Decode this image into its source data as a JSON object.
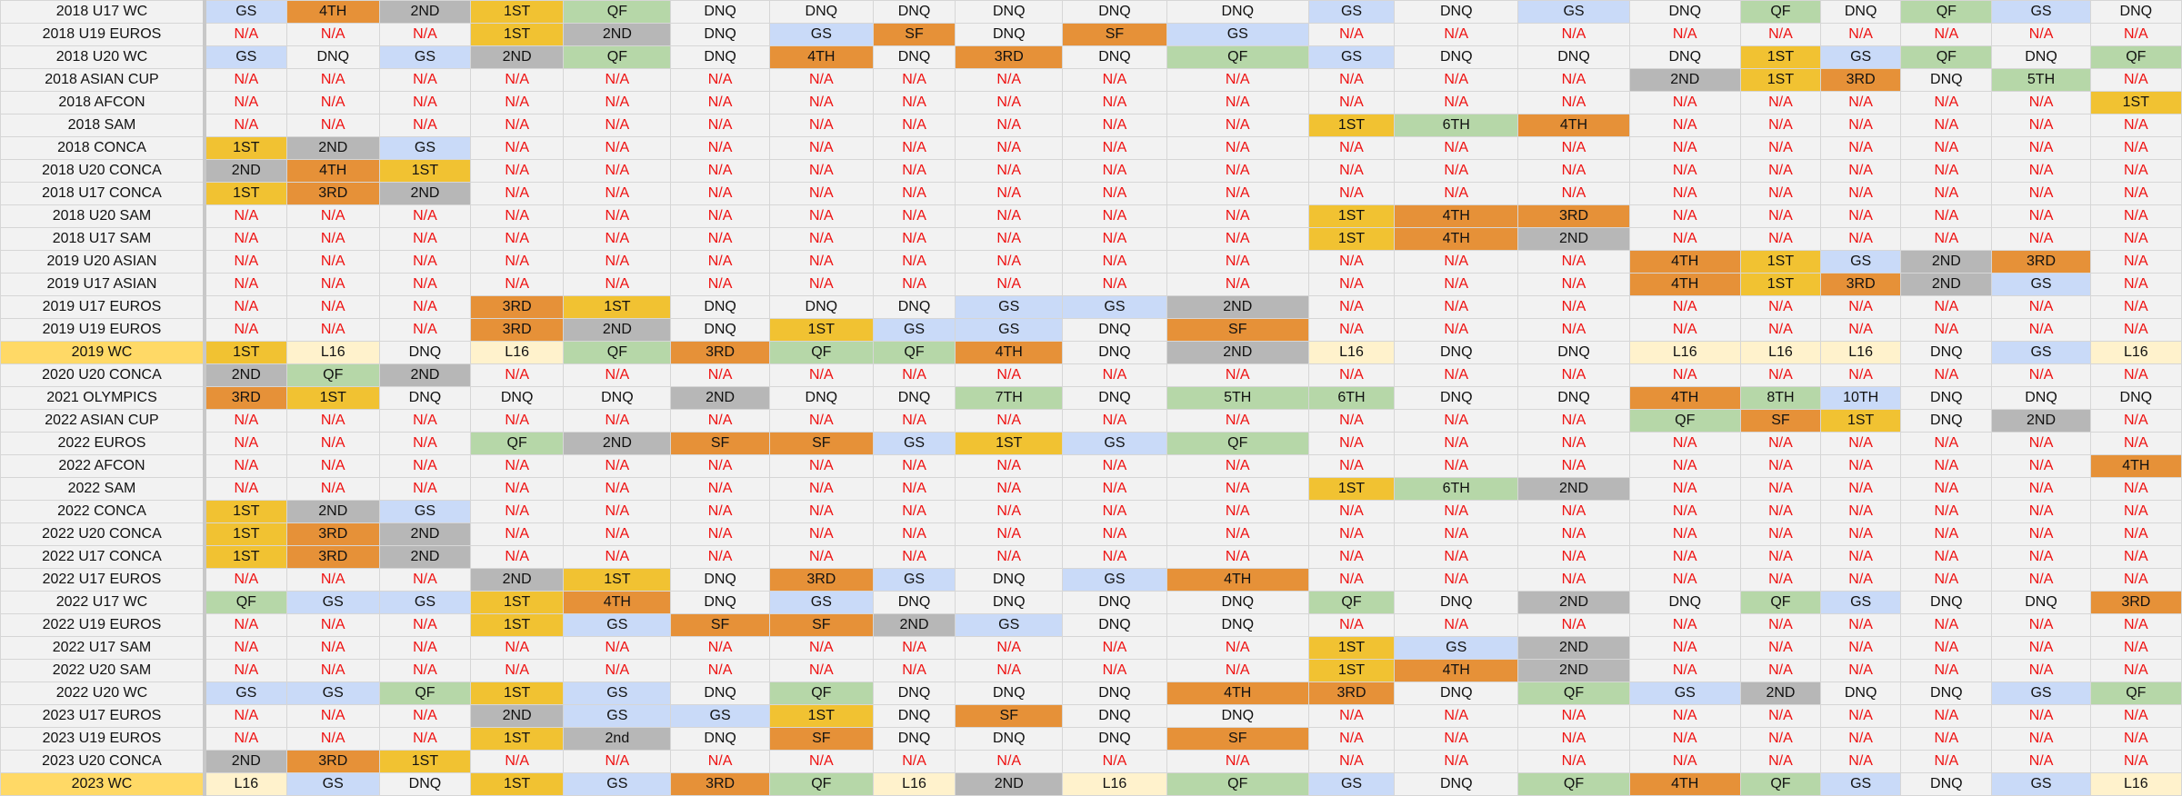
{
  "styles": {
    "GS": "#c9daf8",
    "QF": "#b6d7a8",
    "1ST": "#f1c232",
    "2ND": "#b7b7b7",
    "3RD": "#e69138",
    "4TH": "#e69138",
    "SF": "#e69138",
    "L16": "#fff2cc",
    "5TH": "#b6d7a8",
    "6TH": "#b6d7a8",
    "7TH": "#b6d7a8",
    "8TH": "#b6d7a8",
    "10TH": "#c9daf8",
    "2nd": "#b7b7b7",
    "DNQ": "#f2f2f2",
    "N/A": "#f2f2f2",
    "na_text_color": "#ee1111",
    "highlight_row_color": "#ffd966"
  },
  "rows": [
    {
      "label": "2018 U17 WC",
      "values": [
        "GS",
        "4TH",
        "2ND",
        "1ST",
        "QF",
        "DNQ",
        "DNQ",
        "DNQ",
        "DNQ",
        "DNQ",
        "DNQ",
        "GS",
        "DNQ",
        "GS",
        "DNQ",
        "QF",
        "DNQ",
        "QF",
        "GS",
        "DNQ"
      ]
    },
    {
      "label": "2018 U19 EUROS",
      "values": [
        "N/A",
        "N/A",
        "N/A",
        "1ST",
        "2ND",
        "DNQ",
        "GS",
        "SF",
        "DNQ",
        "SF",
        "GS",
        "N/A",
        "N/A",
        "N/A",
        "N/A",
        "N/A",
        "N/A",
        "N/A",
        "N/A",
        "N/A"
      ]
    },
    {
      "label": "2018 U20 WC",
      "values": [
        "GS",
        "DNQ",
        "GS",
        "2ND",
        "QF",
        "DNQ",
        "4TH",
        "DNQ",
        "3RD",
        "DNQ",
        "QF",
        "GS",
        "DNQ",
        "DNQ",
        "DNQ",
        "1ST",
        "GS",
        "QF",
        "DNQ",
        "QF"
      ]
    },
    {
      "label": "2018 ASIAN CUP",
      "values": [
        "N/A",
        "N/A",
        "N/A",
        "N/A",
        "N/A",
        "N/A",
        "N/A",
        "N/A",
        "N/A",
        "N/A",
        "N/A",
        "N/A",
        "N/A",
        "N/A",
        "2ND",
        "1ST",
        "3RD",
        "DNQ",
        "5TH",
        "N/A"
      ]
    },
    {
      "label": "2018 AFCON",
      "values": [
        "N/A",
        "N/A",
        "N/A",
        "N/A",
        "N/A",
        "N/A",
        "N/A",
        "N/A",
        "N/A",
        "N/A",
        "N/A",
        "N/A",
        "N/A",
        "N/A",
        "N/A",
        "N/A",
        "N/A",
        "N/A",
        "N/A",
        "1ST"
      ]
    },
    {
      "label": "2018 SAM",
      "values": [
        "N/A",
        "N/A",
        "N/A",
        "N/A",
        "N/A",
        "N/A",
        "N/A",
        "N/A",
        "N/A",
        "N/A",
        "N/A",
        "1ST",
        "6TH",
        "4TH",
        "N/A",
        "N/A",
        "N/A",
        "N/A",
        "N/A",
        "N/A"
      ]
    },
    {
      "label": "2018 CONCA",
      "values": [
        "1ST",
        "2ND",
        "GS",
        "N/A",
        "N/A",
        "N/A",
        "N/A",
        "N/A",
        "N/A",
        "N/A",
        "N/A",
        "N/A",
        "N/A",
        "N/A",
        "N/A",
        "N/A",
        "N/A",
        "N/A",
        "N/A",
        "N/A"
      ]
    },
    {
      "label": "2018 U20 CONCA",
      "values": [
        "2ND",
        "4TH",
        "1ST",
        "N/A",
        "N/A",
        "N/A",
        "N/A",
        "N/A",
        "N/A",
        "N/A",
        "N/A",
        "N/A",
        "N/A",
        "N/A",
        "N/A",
        "N/A",
        "N/A",
        "N/A",
        "N/A",
        "N/A"
      ]
    },
    {
      "label": "2018 U17 CONCA",
      "values": [
        "1ST",
        "3RD",
        "2ND",
        "N/A",
        "N/A",
        "N/A",
        "N/A",
        "N/A",
        "N/A",
        "N/A",
        "N/A",
        "N/A",
        "N/A",
        "N/A",
        "N/A",
        "N/A",
        "N/A",
        "N/A",
        "N/A",
        "N/A"
      ]
    },
    {
      "label": "2018 U20 SAM",
      "values": [
        "N/A",
        "N/A",
        "N/A",
        "N/A",
        "N/A",
        "N/A",
        "N/A",
        "N/A",
        "N/A",
        "N/A",
        "N/A",
        "1ST",
        "4TH",
        "3RD",
        "N/A",
        "N/A",
        "N/A",
        "N/A",
        "N/A",
        "N/A"
      ]
    },
    {
      "label": "2018 U17 SAM",
      "values": [
        "N/A",
        "N/A",
        "N/A",
        "N/A",
        "N/A",
        "N/A",
        "N/A",
        "N/A",
        "N/A",
        "N/A",
        "N/A",
        "1ST",
        "4TH",
        "2ND",
        "N/A",
        "N/A",
        "N/A",
        "N/A",
        "N/A",
        "N/A"
      ]
    },
    {
      "label": "2019 U20 ASIAN",
      "values": [
        "N/A",
        "N/A",
        "N/A",
        "N/A",
        "N/A",
        "N/A",
        "N/A",
        "N/A",
        "N/A",
        "N/A",
        "N/A",
        "N/A",
        "N/A",
        "N/A",
        "4TH",
        "1ST",
        "GS",
        "2ND",
        "3RD",
        "N/A"
      ]
    },
    {
      "label": "2019 U17 ASIAN",
      "values": [
        "N/A",
        "N/A",
        "N/A",
        "N/A",
        "N/A",
        "N/A",
        "N/A",
        "N/A",
        "N/A",
        "N/A",
        "N/A",
        "N/A",
        "N/A",
        "N/A",
        "4TH",
        "1ST",
        "3RD",
        "2ND",
        "GS",
        "N/A"
      ]
    },
    {
      "label": "2019 U17 EUROS",
      "values": [
        "N/A",
        "N/A",
        "N/A",
        "3RD",
        "1ST",
        "DNQ",
        "DNQ",
        "DNQ",
        "GS",
        "GS",
        "2ND",
        "N/A",
        "N/A",
        "N/A",
        "N/A",
        "N/A",
        "N/A",
        "N/A",
        "N/A",
        "N/A"
      ]
    },
    {
      "label": "2019 U19 EUROS",
      "values": [
        "N/A",
        "N/A",
        "N/A",
        "3RD",
        "2ND",
        "DNQ",
        "1ST",
        "GS",
        "GS",
        "DNQ",
        "SF",
        "N/A",
        "N/A",
        "N/A",
        "N/A",
        "N/A",
        "N/A",
        "N/A",
        "N/A",
        "N/A"
      ]
    },
    {
      "label": "2019 WC",
      "highlight": true,
      "values": [
        "1ST",
        "L16",
        "DNQ",
        "L16",
        "QF",
        "3RD",
        "QF",
        "QF",
        "4TH",
        "DNQ",
        "2ND",
        "L16",
        "DNQ",
        "DNQ",
        "L16",
        "L16",
        "L16",
        "DNQ",
        "GS",
        "L16"
      ]
    },
    {
      "label": "2020 U20 CONCA",
      "values": [
        "2ND",
        "QF",
        "2ND",
        "N/A",
        "N/A",
        "N/A",
        "N/A",
        "N/A",
        "N/A",
        "N/A",
        "N/A",
        "N/A",
        "N/A",
        "N/A",
        "N/A",
        "N/A",
        "N/A",
        "N/A",
        "N/A",
        "N/A"
      ]
    },
    {
      "label": "2021 OLYMPICS",
      "values": [
        "3RD",
        "1ST",
        "DNQ",
        "DNQ",
        "DNQ",
        "2ND",
        "DNQ",
        "DNQ",
        "7TH",
        "DNQ",
        "5TH",
        "6TH",
        "DNQ",
        "DNQ",
        "4TH",
        "8TH",
        "10TH",
        "DNQ",
        "DNQ",
        "DNQ"
      ]
    },
    {
      "label": "2022 ASIAN CUP",
      "values": [
        "N/A",
        "N/A",
        "N/A",
        "N/A",
        "N/A",
        "N/A",
        "N/A",
        "N/A",
        "N/A",
        "N/A",
        "N/A",
        "N/A",
        "N/A",
        "N/A",
        "QF",
        "SF",
        "1ST",
        "DNQ",
        "2ND",
        "N/A"
      ]
    },
    {
      "label": "2022 EUROS",
      "values": [
        "N/A",
        "N/A",
        "N/A",
        "QF",
        "2ND",
        "SF",
        "SF",
        "GS",
        "1ST",
        "GS",
        "QF",
        "N/A",
        "N/A",
        "N/A",
        "N/A",
        "N/A",
        "N/A",
        "N/A",
        "N/A",
        "N/A"
      ]
    },
    {
      "label": "2022 AFCON",
      "values": [
        "N/A",
        "N/A",
        "N/A",
        "N/A",
        "N/A",
        "N/A",
        "N/A",
        "N/A",
        "N/A",
        "N/A",
        "N/A",
        "N/A",
        "N/A",
        "N/A",
        "N/A",
        "N/A",
        "N/A",
        "N/A",
        "N/A",
        "4TH"
      ]
    },
    {
      "label": "2022 SAM",
      "values": [
        "N/A",
        "N/A",
        "N/A",
        "N/A",
        "N/A",
        "N/A",
        "N/A",
        "N/A",
        "N/A",
        "N/A",
        "N/A",
        "1ST",
        "6TH",
        "2ND",
        "N/A",
        "N/A",
        "N/A",
        "N/A",
        "N/A",
        "N/A"
      ]
    },
    {
      "label": "2022 CONCA",
      "values": [
        "1ST",
        "2ND",
        "GS",
        "N/A",
        "N/A",
        "N/A",
        "N/A",
        "N/A",
        "N/A",
        "N/A",
        "N/A",
        "N/A",
        "N/A",
        "N/A",
        "N/A",
        "N/A",
        "N/A",
        "N/A",
        "N/A",
        "N/A"
      ]
    },
    {
      "label": "2022 U20 CONCA",
      "values": [
        "1ST",
        "3RD",
        "2ND",
        "N/A",
        "N/A",
        "N/A",
        "N/A",
        "N/A",
        "N/A",
        "N/A",
        "N/A",
        "N/A",
        "N/A",
        "N/A",
        "N/A",
        "N/A",
        "N/A",
        "N/A",
        "N/A",
        "N/A"
      ]
    },
    {
      "label": "2022 U17 CONCA",
      "values": [
        "1ST",
        "3RD",
        "2ND",
        "N/A",
        "N/A",
        "N/A",
        "N/A",
        "N/A",
        "N/A",
        "N/A",
        "N/A",
        "N/A",
        "N/A",
        "N/A",
        "N/A",
        "N/A",
        "N/A",
        "N/A",
        "N/A",
        "N/A"
      ]
    },
    {
      "label": "2022 U17 EUROS",
      "values": [
        "N/A",
        "N/A",
        "N/A",
        "2ND",
        "1ST",
        "DNQ",
        "3RD",
        "GS",
        "DNQ",
        "GS",
        "4TH",
        "N/A",
        "N/A",
        "N/A",
        "N/A",
        "N/A",
        "N/A",
        "N/A",
        "N/A",
        "N/A"
      ]
    },
    {
      "label": "2022 U17 WC",
      "values": [
        "QF",
        "GS",
        "GS",
        "1ST",
        "4TH",
        "DNQ",
        "GS",
        "DNQ",
        "DNQ",
        "DNQ",
        "DNQ",
        "QF",
        "DNQ",
        "2ND",
        "DNQ",
        "QF",
        "GS",
        "DNQ",
        "DNQ",
        "3RD"
      ]
    },
    {
      "label": "2022 U19 EUROS",
      "values": [
        "N/A",
        "N/A",
        "N/A",
        "1ST",
        "GS",
        "SF",
        "SF",
        "2ND",
        "GS",
        "DNQ",
        "DNQ",
        "N/A",
        "N/A",
        "N/A",
        "N/A",
        "N/A",
        "N/A",
        "N/A",
        "N/A",
        "N/A"
      ]
    },
    {
      "label": "2022 U17 SAM",
      "values": [
        "N/A",
        "N/A",
        "N/A",
        "N/A",
        "N/A",
        "N/A",
        "N/A",
        "N/A",
        "N/A",
        "N/A",
        "N/A",
        "1ST",
        "GS",
        "2ND",
        "N/A",
        "N/A",
        "N/A",
        "N/A",
        "N/A",
        "N/A"
      ]
    },
    {
      "label": "2022 U20 SAM",
      "values": [
        "N/A",
        "N/A",
        "N/A",
        "N/A",
        "N/A",
        "N/A",
        "N/A",
        "N/A",
        "N/A",
        "N/A",
        "N/A",
        "1ST",
        "4TH",
        "2ND",
        "N/A",
        "N/A",
        "N/A",
        "N/A",
        "N/A",
        "N/A"
      ]
    },
    {
      "label": "2022 U20 WC",
      "values": [
        "GS",
        "GS",
        "QF",
        "1ST",
        "GS",
        "DNQ",
        "QF",
        "DNQ",
        "DNQ",
        "DNQ",
        "4TH",
        "3RD",
        "DNQ",
        "QF",
        "GS",
        "2ND",
        "DNQ",
        "DNQ",
        "GS",
        "QF"
      ]
    },
    {
      "label": "2023 U17 EUROS",
      "values": [
        "N/A",
        "N/A",
        "N/A",
        "2ND",
        "GS",
        "GS",
        "1ST",
        "DNQ",
        "SF",
        "DNQ",
        "DNQ",
        "N/A",
        "N/A",
        "N/A",
        "N/A",
        "N/A",
        "N/A",
        "N/A",
        "N/A",
        "N/A"
      ]
    },
    {
      "label": "2023 U19 EUROS",
      "values": [
        "N/A",
        "N/A",
        "N/A",
        "1ST",
        "2nd",
        "DNQ",
        "SF",
        "DNQ",
        "DNQ",
        "DNQ",
        "SF",
        "N/A",
        "N/A",
        "N/A",
        "N/A",
        "N/A",
        "N/A",
        "N/A",
        "N/A",
        "N/A"
      ]
    },
    {
      "label": "2023 U20 CONCA",
      "values": [
        "2ND",
        "3RD",
        "1ST",
        "N/A",
        "N/A",
        "N/A",
        "N/A",
        "N/A",
        "N/A",
        "N/A",
        "N/A",
        "N/A",
        "N/A",
        "N/A",
        "N/A",
        "N/A",
        "N/A",
        "N/A",
        "N/A",
        "N/A"
      ]
    },
    {
      "label": "2023 WC",
      "highlight": true,
      "values": [
        "L16",
        "GS",
        "DNQ",
        "1ST",
        "GS",
        "3RD",
        "QF",
        "L16",
        "2ND",
        "L16",
        "QF",
        "GS",
        "DNQ",
        "QF",
        "4TH",
        "QF",
        "GS",
        "DNQ",
        "GS",
        "L16"
      ]
    }
  ]
}
